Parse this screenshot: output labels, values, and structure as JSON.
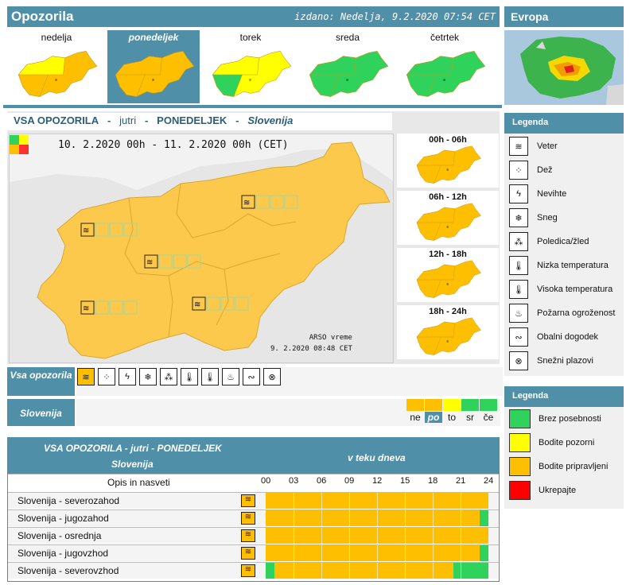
{
  "header": {
    "title": "Opozorila",
    "issued": "izdano: Nedelja, 9.2.2020 07:54 CET"
  },
  "europe": {
    "title": "Evropa"
  },
  "days": [
    {
      "label": "nedelja",
      "selected": false
    },
    {
      "label": "ponedeljek",
      "selected": true
    },
    {
      "label": "torek",
      "selected": false
    },
    {
      "label": "sreda",
      "selected": false
    },
    {
      "label": "četrtek",
      "selected": false
    }
  ],
  "panel": {
    "t1": "VSA OPOZORILA",
    "sep": "-",
    "t2": "jutri",
    "t3": "PONEDELJEK",
    "t4": "Slovenija",
    "date": "10. 2.2020  00h  -  11. 2.2020  00h    (CET)",
    "credit1": "ARSO vreme",
    "credit2": "9. 2.2020  08:48 CET"
  },
  "slots": [
    "00h - 06h",
    "06h - 12h",
    "12h - 18h",
    "18h - 24h"
  ],
  "vsa_label": "Vsa opozorila",
  "slovenia_label": "Slovenija",
  "levels": [
    {
      "label": "ne",
      "color": "#fdbf00",
      "selected": false
    },
    {
      "label": "po",
      "color": "#fdbf00",
      "selected": true
    },
    {
      "label": "to",
      "color": "#ffff00",
      "selected": false
    },
    {
      "label": "sr",
      "color": "#2fd25b",
      "selected": false
    },
    {
      "label": "če",
      "color": "#2fd25b",
      "selected": false
    }
  ],
  "table": {
    "title": "VSA OPOZORILA - jutri - PONEDELJEK",
    "subtitle": "Slovenija",
    "during_day": "v teku dneva",
    "desc_col": "Opis in nasveti",
    "hours": [
      "00",
      "03",
      "06",
      "09",
      "12",
      "15",
      "18",
      "21",
      "24"
    ],
    "rows": [
      {
        "name": "Slovenija - severozahod",
        "start_green": 0,
        "end_green": 0
      },
      {
        "name": "Slovenija - jugozahod",
        "start_green": 0,
        "end_green": 1
      },
      {
        "name": "Slovenija - osrednja",
        "start_green": 0,
        "end_green": 0
      },
      {
        "name": "Slovenija - jugovzhod",
        "start_green": 0,
        "end_green": 1
      },
      {
        "name": "Slovenija - severovzhod",
        "start_green": 1,
        "end_green": 4
      }
    ]
  },
  "legend1": {
    "title": "Legenda",
    "items": [
      {
        "label": "Veter",
        "icon": "wind-icon"
      },
      {
        "label": "Dež",
        "icon": "rain-icon"
      },
      {
        "label": "Nevihte",
        "icon": "thunderstorm-icon"
      },
      {
        "label": "Sneg",
        "icon": "snow-icon"
      },
      {
        "label": "Poledica/žled",
        "icon": "ice-icon"
      },
      {
        "label": "Nizka temperatura",
        "icon": "low-temperature-icon"
      },
      {
        "label": "Visoka temperatura",
        "icon": "high-temperature-icon"
      },
      {
        "label": "Požarna ogroženost",
        "icon": "fire-danger-icon"
      },
      {
        "label": "Obalni dogodek",
        "icon": "coastal-event-icon"
      },
      {
        "label": "Snežni plazovi",
        "icon": "avalanche-icon"
      }
    ]
  },
  "legend2": {
    "title": "Legenda",
    "items": [
      {
        "label": "Brez posebnosti",
        "color": "#2fd25b"
      },
      {
        "label": "Bodite pozorni",
        "color": "#ffff00"
      },
      {
        "label": "Bodite pripravljeni",
        "color": "#fdbf00"
      },
      {
        "label": "Ukrepajte",
        "color": "#ff0000"
      }
    ]
  },
  "colors": {
    "accent": "#4f8fa8",
    "orange": "#fdbf00",
    "yellow": "#ffff00",
    "green": "#2fd25b"
  }
}
